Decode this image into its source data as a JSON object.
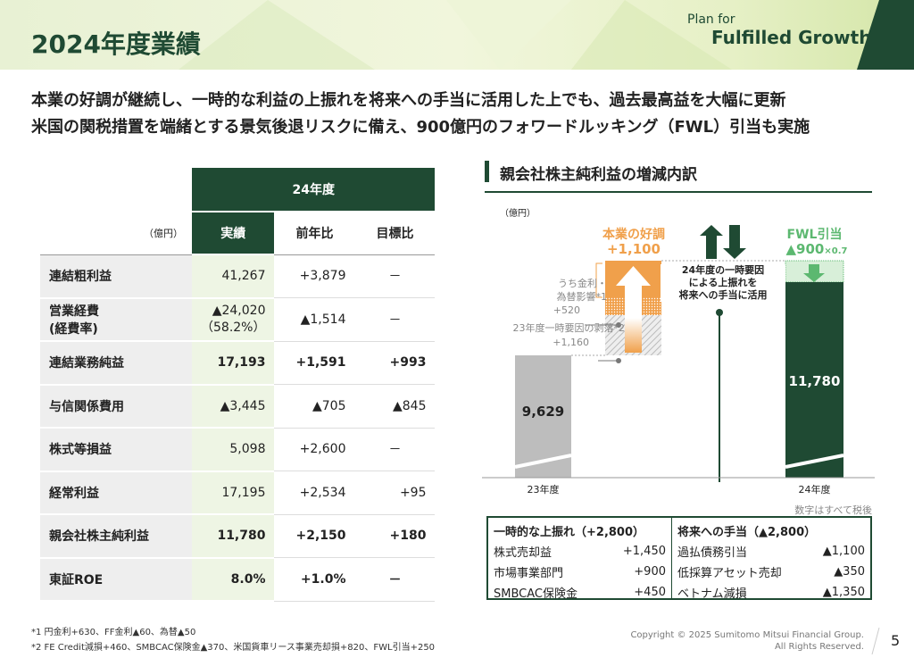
{
  "header": {
    "title": "2024年度業績",
    "logo_line1": "Plan for",
    "logo_line2": "Fulfilled Growth"
  },
  "subtitle": [
    "本業の好調が継続し、一時的な利益の上振れを将来への手当に活用した上でも、過去最高益を大幅に更新",
    "米国の関税措置を端緒とする景気後退リスクに備え、900億円のフォワードルッキング（FWL）引当も実施"
  ],
  "table": {
    "group_header": "24年度",
    "unit": "（億円）",
    "columns": [
      "実績",
      "前年比",
      "目標比"
    ],
    "rows": [
      {
        "label": "連結粗利益",
        "values": [
          "41,267",
          "+3,879",
          "－"
        ],
        "bold": false
      },
      {
        "label": "営業経費",
        "label2": "(経費率)",
        "values": [
          "▲24,020",
          "▲1,514",
          "－"
        ],
        "sub": "（58.2%）",
        "bold": false
      },
      {
        "label": "連結業務純益",
        "values": [
          "17,193",
          "+1,591",
          "+993"
        ],
        "bold": true
      },
      {
        "label": "与信関係費用",
        "values": [
          "▲3,445",
          "▲705",
          "▲845"
        ],
        "bold": false
      },
      {
        "label": "株式等損益",
        "values": [
          "5,098",
          "+2,600",
          "－"
        ],
        "bold": false
      },
      {
        "label": "経常利益",
        "values": [
          "17,195",
          "+2,534",
          "+95"
        ],
        "bold": false
      },
      {
        "label": "親会社株主純利益",
        "values": [
          "11,780",
          "+2,150",
          "+180"
        ],
        "bold": true
      },
      {
        "label": "東証ROE",
        "values": [
          "8.0%",
          "+1.0%",
          "－"
        ],
        "bold": true
      }
    ]
  },
  "chart": {
    "title": "親会社株主純利益の増減内訳",
    "unit": "（億円）",
    "core_label": "本業の好調",
    "core_value": "+1,100",
    "fx_label": [
      "うち金利・",
      "為替影響*1"
    ],
    "fx_value": "+520",
    "drop_label": "23年度一時要因の剥落*2",
    "drop_value": "+1,160",
    "center_text": [
      "24年度の一時要因",
      "による上振れを",
      "将来への手当に活用"
    ],
    "fwl_label": "FWL引当",
    "fwl_value": "▲900",
    "fwl_mult": "×0.7",
    "bar1_value": "9,629",
    "bar2_value": "11,780",
    "x_labels": [
      "23年度",
      "24年度"
    ],
    "note": "数字はすべて税後",
    "colors": {
      "orange": "#f0a04b",
      "dark_green": "#1f4a33",
      "light_green": "#5cb870",
      "gray": "#bdbdbd"
    }
  },
  "breakdown": {
    "left": {
      "title": "一時的な上振れ（+2,800）",
      "items": [
        [
          "株式売却益",
          "+1,450"
        ],
        [
          "市場事業部門",
          "+900"
        ],
        [
          "SMBCAC保険金",
          "+450"
        ]
      ]
    },
    "right": {
      "title": "将来への手当（▲2,800）",
      "items": [
        [
          "過払債務引当",
          "▲1,100"
        ],
        [
          "低採算アセット売却",
          "▲350"
        ],
        [
          "ベトナム減損",
          "▲1,350"
        ]
      ]
    }
  },
  "footnotes": [
    "*1 円金利+630、FF金利▲60、為替▲50",
    "*2 FE Credit減損+460、SMBCAC保険金▲370、米国貨車リース事業売却損+820、FWL引当+250"
  ],
  "copyright": [
    "Copyright © 2025 Sumitomo Mitsui Financial Group.",
    "All Rights Reserved."
  ],
  "page_number": "5"
}
